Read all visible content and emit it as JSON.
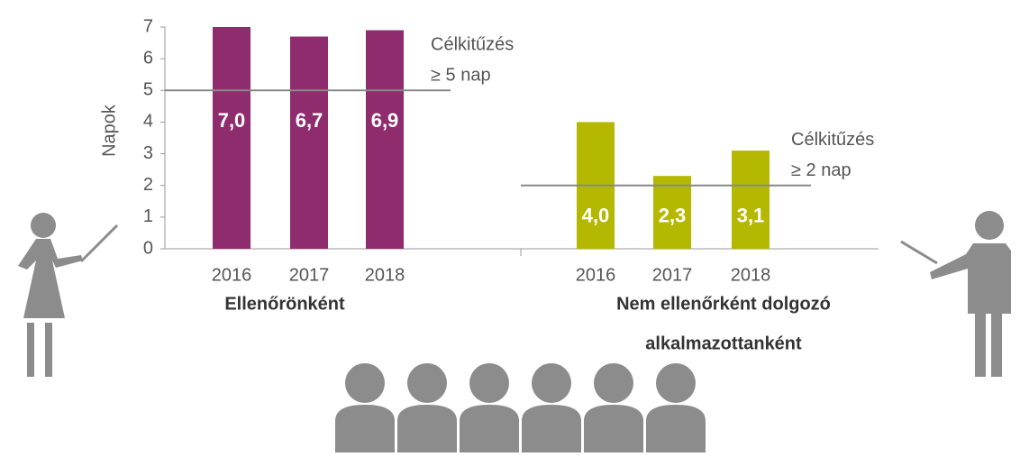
{
  "chart_data": {
    "type": "bar",
    "y_label": "Napok",
    "ylim": [
      0,
      7
    ],
    "yticks": [
      0,
      1,
      2,
      3,
      4,
      5,
      6,
      7
    ],
    "groups": [
      {
        "name": [
          "Ellenőrönként"
        ],
        "categories": [
          "2016",
          "2017",
          "2018"
        ],
        "values": [
          7.0,
          6.7,
          6.9
        ],
        "value_labels": [
          "7,0",
          "6,7",
          "6,9"
        ],
        "color": "#8e2c6e",
        "target": 5,
        "target_label": [
          "Célkitűzés",
          "≥ 5 nap"
        ]
      },
      {
        "name": [
          "Nem ellenőrként dolgozó",
          "alkalmazottanként"
        ],
        "categories": [
          "2016",
          "2017",
          "2018"
        ],
        "values": [
          4.0,
          2.3,
          3.1
        ],
        "value_labels": [
          "4,0",
          "2,3",
          "3,1"
        ],
        "color": "#b5b800",
        "target": 2,
        "target_label": [
          "Célkitűzés",
          "≥ 2 nap"
        ]
      }
    ]
  }
}
